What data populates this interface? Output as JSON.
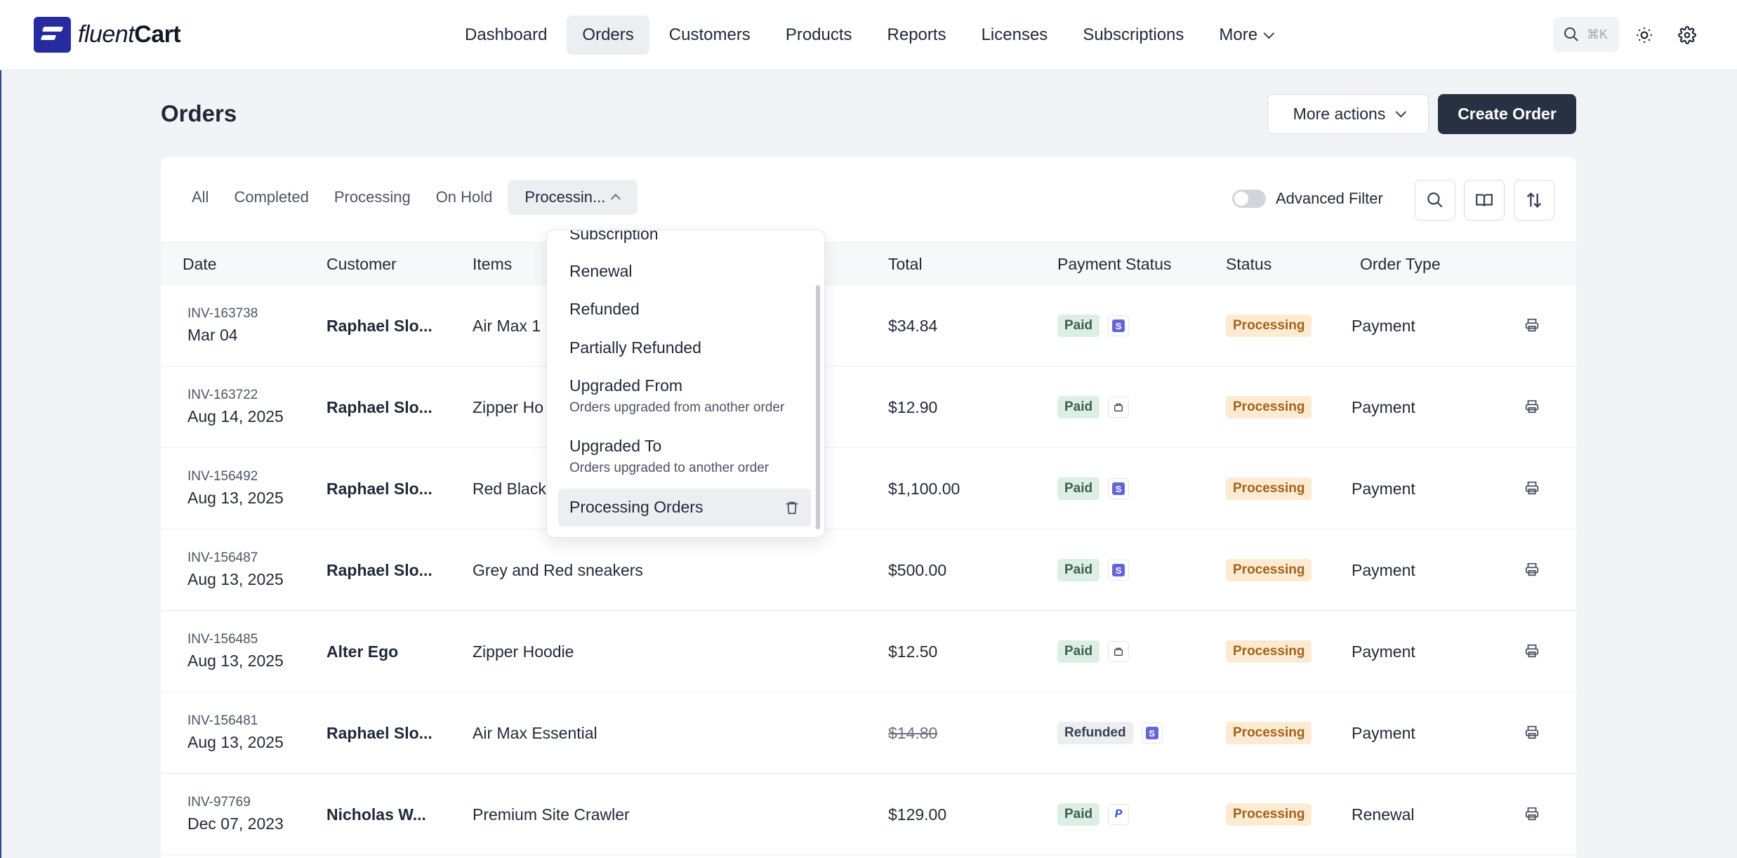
{
  "app": {
    "brand_light": "fluent",
    "brand_bold": "Cart",
    "accent_color": "#262ba0"
  },
  "nav": {
    "items": [
      {
        "label": "Dashboard"
      },
      {
        "label": "Orders",
        "active": true
      },
      {
        "label": "Customers"
      },
      {
        "label": "Products"
      },
      {
        "label": "Reports"
      },
      {
        "label": "Licenses"
      },
      {
        "label": "Subscriptions"
      },
      {
        "label": "More"
      }
    ],
    "search_shortcut": "⌘K",
    "icons": [
      "search-icon",
      "sun-icon",
      "gear-icon"
    ]
  },
  "page": {
    "title": "Orders",
    "more_actions": "More actions",
    "create_order": "Create Order"
  },
  "tabs": [
    "All",
    "Completed",
    "Processing",
    "On Hold",
    "Processin..."
  ],
  "filter": {
    "advanced_label": "Advanced Filter",
    "advanced_enabled": false
  },
  "table": {
    "headers": [
      "Date",
      "Customer",
      "Items",
      "Total",
      "Payment Status",
      "Status",
      "Order Type"
    ],
    "rows": [
      {
        "invoice": "INV-163738",
        "date": "Mar 04",
        "customer": "Raphael Slo...",
        "items": "Air Max 1",
        "total": "$34.84",
        "payment": "Paid",
        "gateway": "stripe",
        "status": "Processing",
        "type": "Payment"
      },
      {
        "invoice": "INV-163722",
        "date": "Aug 14, 2025",
        "customer": "Raphael Slo...",
        "items": "Zipper Ho",
        "total": "$12.90",
        "payment": "Paid",
        "gateway": "offline",
        "status": "Processing",
        "type": "Payment"
      },
      {
        "invoice": "INV-156492",
        "date": "Aug 13, 2025",
        "customer": "Raphael Slo...",
        "items": "Red Black",
        "total": "$1,100.00",
        "payment": "Paid",
        "gateway": "stripe",
        "status": "Processing",
        "type": "Payment"
      },
      {
        "invoice": "INV-156487",
        "date": "Aug 13, 2025",
        "customer": "Raphael Slo...",
        "items": "Grey and Red sneakers",
        "total": "$500.00",
        "payment": "Paid",
        "gateway": "stripe",
        "status": "Processing",
        "type": "Payment"
      },
      {
        "invoice": "INV-156485",
        "date": "Aug 13, 2025",
        "customer": "Alter Ego",
        "items": "Zipper Hoodie",
        "total": "$12.50",
        "payment": "Paid",
        "gateway": "offline",
        "status": "Processing",
        "type": "Payment"
      },
      {
        "invoice": "INV-156481",
        "date": "Aug 13, 2025",
        "customer": "Raphael Slo...",
        "items": "Air Max Essential",
        "total": "$14.80",
        "total_struck": true,
        "payment": "Refunded",
        "gateway": "stripe",
        "status": "Processing",
        "type": "Payment"
      },
      {
        "invoice": "INV-97769",
        "date": "Dec 07, 2023",
        "customer": "Nicholas W...",
        "items": "Premium Site Crawler",
        "total": "$129.00",
        "payment": "Paid",
        "gateway": "paypal",
        "status": "Processing",
        "type": "Renewal"
      }
    ]
  },
  "dropdown": {
    "items": [
      {
        "label": "Subscription"
      },
      {
        "label": "Renewal"
      },
      {
        "label": "Refunded"
      },
      {
        "label": "Partially Refunded"
      },
      {
        "label": "Upgraded From",
        "desc": "Orders upgraded from another order"
      },
      {
        "label": "Upgraded To",
        "desc": "Orders upgraded to another order"
      },
      {
        "label": "Processing Orders",
        "selected": true
      }
    ]
  }
}
